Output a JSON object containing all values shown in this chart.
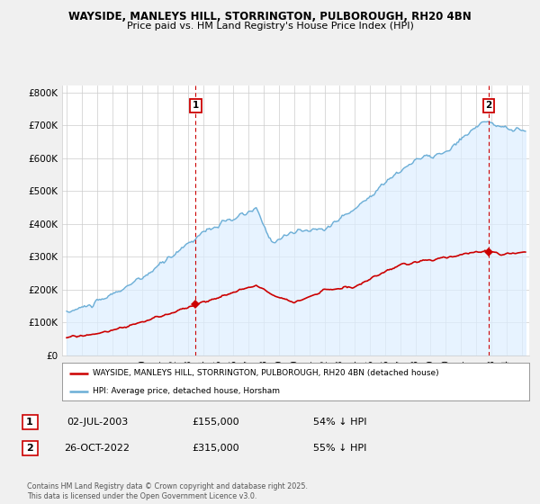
{
  "title": "WAYSIDE, MANLEYS HILL, STORRINGTON, PULBOROUGH, RH20 4BN",
  "subtitle": "Price paid vs. HM Land Registry's House Price Index (HPI)",
  "ylabel_ticks": [
    "£0",
    "£100K",
    "£200K",
    "£300K",
    "£400K",
    "£500K",
    "£600K",
    "£700K",
    "£800K"
  ],
  "ytick_values": [
    0,
    100000,
    200000,
    300000,
    400000,
    500000,
    600000,
    700000,
    800000
  ],
  "ylim": [
    0,
    820000
  ],
  "xlim_start": 1994.7,
  "xlim_end": 2025.5,
  "hpi_color": "#6baed6",
  "hpi_fill_color": "#ddeeff",
  "price_color": "#cc0000",
  "marker1_date": 2003.5,
  "marker1_price": 155000,
  "marker2_date": 2022.83,
  "marker2_price": 315000,
  "legend_property": "WAYSIDE, MANLEYS HILL, STORRINGTON, PULBOROUGH, RH20 4BN (detached house)",
  "legend_hpi": "HPI: Average price, detached house, Horsham",
  "table_rows": [
    {
      "num": "1",
      "date": "02-JUL-2003",
      "price": "£155,000",
      "hpi": "54% ↓ HPI"
    },
    {
      "num": "2",
      "date": "26-OCT-2022",
      "price": "£315,000",
      "hpi": "55% ↓ HPI"
    }
  ],
  "footer": "Contains HM Land Registry data © Crown copyright and database right 2025.\nThis data is licensed under the Open Government Licence v3.0.",
  "background_color": "#f0f0f0",
  "plot_bg_color": "#ffffff",
  "grid_color": "#cccccc"
}
